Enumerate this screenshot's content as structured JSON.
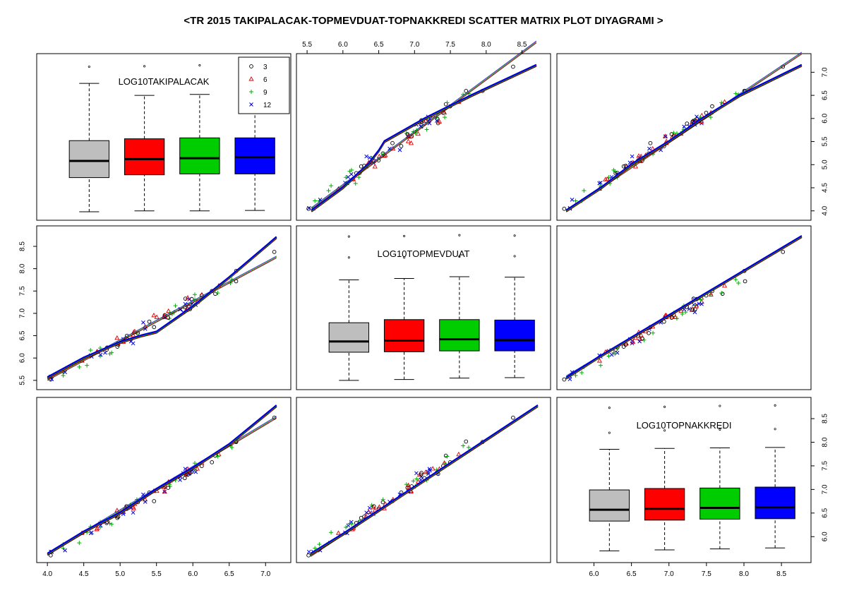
{
  "title": "<TR 2015 TAKIPALACAK-TOPMEVDUAT-TOPNAKKREDI SCATTER MATRIX PLOT DIYAGRAMI >",
  "variables": [
    {
      "name": "LOG10TAKIPALACAK",
      "range": [
        3.95,
        7.25
      ],
      "ticks": [
        "4.0",
        "4.5",
        "5.0",
        "5.5",
        "6.0",
        "6.5",
        "7.0"
      ]
    },
    {
      "name": "LOG10TOPMEVDUAT",
      "range": [
        5.45,
        8.8
      ],
      "ticks": [
        "5.5",
        "6.0",
        "6.5",
        "7.0",
        "7.5",
        "8.0",
        "8.5"
      ]
    },
    {
      "name": "LOG10TOPNAKKREDI",
      "range": [
        5.6,
        8.8
      ],
      "ticks": [
        "6.0",
        "6.5",
        "7.0",
        "7.5",
        "8.0",
        "8.5"
      ]
    }
  ],
  "legend": {
    "items": [
      {
        "label": "3",
        "symbol": "circle"
      },
      {
        "label": "6",
        "symbol": "triangle"
      },
      {
        "label": "9",
        "symbol": "plus"
      },
      {
        "label": "12",
        "symbol": "cross"
      }
    ]
  },
  "group_colors": {
    "3": "#000000",
    "6": "#e00000",
    "9": "#00b000",
    "12": "#0000dd"
  },
  "box_fill_colors": [
    "#bebebe",
    "#ff0000",
    "#00cd00",
    "#0000ff"
  ],
  "chart_data": {
    "type": "scatter",
    "layout": "scatter-matrix 3x3 with boxplots on diagonal",
    "groups": [
      "3",
      "6",
      "9",
      "12"
    ],
    "boxplots": [
      {
        "variable": "LOG10TAKIPALACAK",
        "groups": [
          {
            "group": "3",
            "min": 3.98,
            "q1": 4.72,
            "median": 5.08,
            "q3": 5.52,
            "max": 6.76,
            "outliers": [
              7.12
            ]
          },
          {
            "group": "6",
            "min": 4.0,
            "q1": 4.78,
            "median": 5.12,
            "q3": 5.56,
            "max": 6.5,
            "outliers": [
              7.13
            ]
          },
          {
            "group": "9",
            "min": 4.0,
            "q1": 4.8,
            "median": 5.14,
            "q3": 5.58,
            "max": 6.52,
            "outliers": [
              7.15
            ]
          },
          {
            "group": "12",
            "min": 4.01,
            "q1": 4.8,
            "median": 5.16,
            "q3": 5.58,
            "max": 6.52,
            "outliers": [
              7.16
            ]
          }
        ]
      },
      {
        "variable": "LOG10TOPMEVDUAT",
        "groups": [
          {
            "group": "3",
            "min": 5.5,
            "q1": 6.13,
            "median": 6.37,
            "q3": 6.79,
            "max": 7.75,
            "outliers": [
              8.25,
              8.72
            ]
          },
          {
            "group": "6",
            "min": 5.52,
            "q1": 6.14,
            "median": 6.39,
            "q3": 6.86,
            "max": 7.78,
            "outliers": [
              8.25,
              8.73
            ]
          },
          {
            "group": "9",
            "min": 5.55,
            "q1": 6.16,
            "median": 6.42,
            "q3": 6.86,
            "max": 7.82,
            "outliers": [
              8.27,
              8.75
            ]
          },
          {
            "group": "12",
            "min": 5.56,
            "q1": 6.16,
            "median": 6.4,
            "q3": 6.85,
            "max": 7.81,
            "outliers": [
              8.28,
              8.74
            ]
          }
        ]
      },
      {
        "variable": "LOG10TOPNAKKREDI",
        "groups": [
          {
            "group": "3",
            "min": 5.7,
            "q1": 6.33,
            "median": 6.57,
            "q3": 6.99,
            "max": 7.85,
            "outliers": [
              8.2,
              8.73
            ]
          },
          {
            "group": "6",
            "min": 5.72,
            "q1": 6.35,
            "median": 6.59,
            "q3": 7.02,
            "max": 7.87,
            "outliers": [
              8.25,
              8.75
            ]
          },
          {
            "group": "9",
            "min": 5.74,
            "q1": 6.37,
            "median": 6.61,
            "q3": 7.03,
            "max": 7.88,
            "outliers": [
              8.27,
              8.77
            ]
          },
          {
            "group": "12",
            "min": 5.76,
            "q1": 6.38,
            "median": 6.62,
            "q3": 7.05,
            "max": 7.89,
            "outliers": [
              8.28,
              8.78
            ]
          }
        ]
      }
    ],
    "relations": [
      {
        "x": "LOG10TAKIPALACAK",
        "y": "LOG10TOPMEVDUAT",
        "regression": {
          "slope": 0.87,
          "intercept": 2.04
        },
        "smoother": [
          [
            4.0,
            5.56
          ],
          [
            4.5,
            6.0
          ],
          [
            5.0,
            6.35
          ],
          [
            5.3,
            6.5
          ],
          [
            5.5,
            6.58
          ],
          [
            6.0,
            7.15
          ],
          [
            6.5,
            7.8
          ],
          [
            7.15,
            8.7
          ]
        ]
      },
      {
        "x": "LOG10TAKIPALACAK",
        "y": "LOG10TOPNAKKREDI",
        "regression": {
          "slope": 0.92,
          "intercept": 1.95
        },
        "smoother": [
          [
            4.0,
            5.63
          ],
          [
            4.5,
            6.1
          ],
          [
            5.0,
            6.5
          ],
          [
            5.5,
            7.0
          ],
          [
            6.0,
            7.45
          ],
          [
            6.5,
            7.95
          ],
          [
            7.15,
            8.77
          ]
        ]
      },
      {
        "x": "LOG10TOPMEVDUAT",
        "y": "LOG10TOPNAKKREDI",
        "regression": {
          "slope": 1.0,
          "intercept": 0.05
        },
        "smoother": [
          [
            5.55,
            5.63
          ],
          [
            6.0,
            6.05
          ],
          [
            6.5,
            6.55
          ],
          [
            7.0,
            7.05
          ],
          [
            7.5,
            7.55
          ],
          [
            8.0,
            8.05
          ],
          [
            8.72,
            8.77
          ]
        ]
      }
    ],
    "sample_points": 90
  }
}
